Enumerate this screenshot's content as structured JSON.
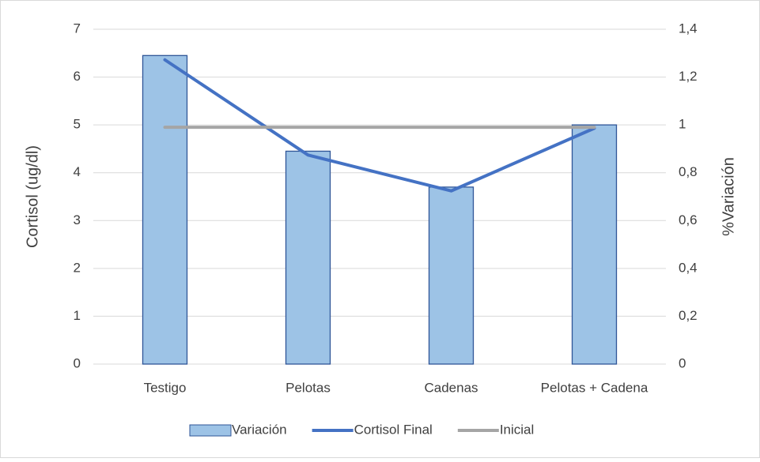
{
  "chart_data": {
    "type": "bar",
    "categories": [
      "Testigo",
      "Pelotas",
      "Cadenas",
      "Pelotas + Cadena"
    ],
    "ylabel": "Cortisol (ug/dl)",
    "y2label": "%Variación",
    "ylim": [
      0,
      7
    ],
    "yticks": [
      0,
      1,
      2,
      3,
      4,
      5,
      6,
      7
    ],
    "y2lim": [
      0,
      1.4
    ],
    "y2ticks": [
      0,
      {
        "value": 0.2,
        "label": "0,2"
      },
      {
        "value": 0.4,
        "label": "0,4"
      },
      {
        "value": 0.6,
        "label": "0,6"
      },
      {
        "value": 0.8,
        "label": "0,8"
      },
      1,
      {
        "value": 1.2,
        "label": "1,2"
      },
      {
        "value": 1.4,
        "label": "1,4"
      }
    ],
    "grid": true,
    "legend": "bottom",
    "series": [
      {
        "name": "Variación",
        "type": "bar",
        "axis": "y2",
        "color": "#9dc3e6",
        "values": [
          1.29,
          0.89,
          0.74,
          1.0
        ]
      },
      {
        "name": "Cortisol Final",
        "type": "line",
        "color": "#4472c4",
        "values": [
          6.36,
          4.37,
          3.62,
          4.93
        ]
      },
      {
        "name": "Inicial",
        "type": "line",
        "color": "#a5a5a5",
        "values": [
          4.95,
          4.95,
          4.95,
          4.95
        ]
      }
    ]
  }
}
